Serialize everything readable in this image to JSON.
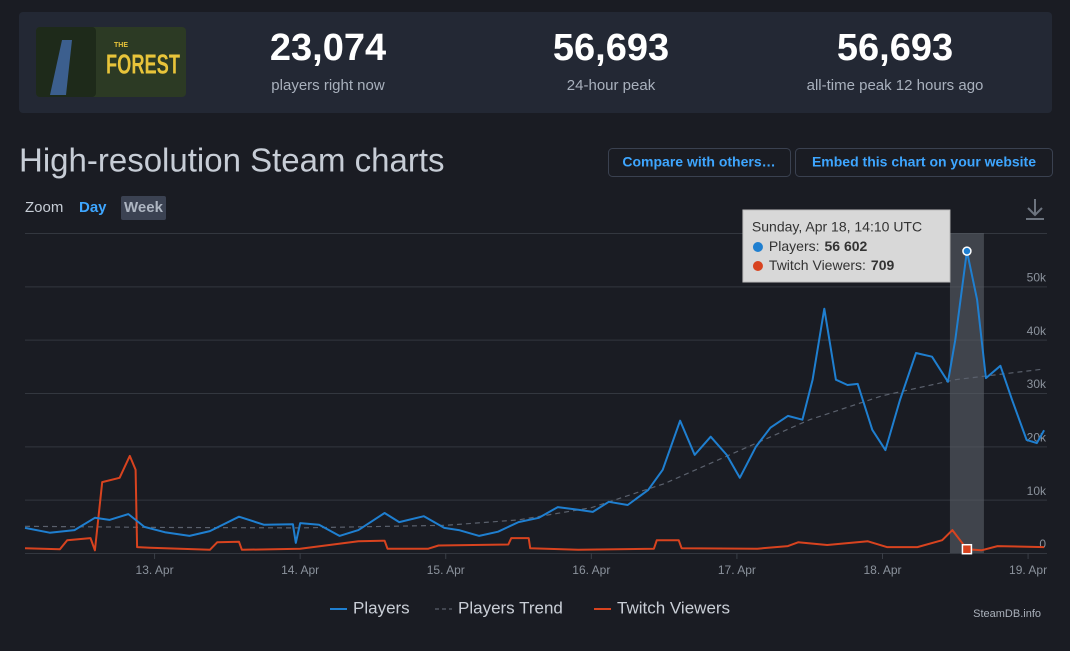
{
  "header": {
    "logo": {
      "small": "THE",
      "big": "FOREST"
    },
    "stats": [
      {
        "value": "23,074",
        "label": "players right now"
      },
      {
        "value": "56,693",
        "label": "24-hour peak"
      },
      {
        "value": "56,693",
        "label": "all-time peak 12 hours ago"
      }
    ]
  },
  "title": "High-resolution Steam charts",
  "buttons": [
    "Compare with others…",
    "Embed this chart on your website"
  ],
  "zoom": {
    "label": "Zoom",
    "options": [
      "Day",
      "Week"
    ]
  },
  "credit": "SteamDB.info",
  "chart_data": {
    "type": "line",
    "xlim": [
      12.11,
      19.13
    ],
    "xticks": [
      {
        "value": 13,
        "label": "13. Apr"
      },
      {
        "value": 14,
        "label": "14. Apr"
      },
      {
        "value": 15,
        "label": "15. Apr"
      },
      {
        "value": 16,
        "label": "16. Apr"
      },
      {
        "value": 17,
        "label": "17. Apr"
      },
      {
        "value": 18,
        "label": "18. Apr"
      },
      {
        "value": 19,
        "label": "19. Apr"
      }
    ],
    "ylim": [
      0,
      60000
    ],
    "yticks": [
      0,
      {
        "value": 10000,
        "label": "10k"
      },
      {
        "value": 20000,
        "label": "20k"
      },
      {
        "value": 30000,
        "label": "30k"
      },
      {
        "value": 40000,
        "label": "40k"
      },
      {
        "value": 50000,
        "label": "50k"
      }
    ],
    "grid": true,
    "series": [
      {
        "name": "Players",
        "color": "#1f7fd0",
        "dashed": false,
        "x": [
          12.11,
          12.28,
          12.45,
          12.59,
          12.69,
          12.82,
          12.93,
          13.07,
          13.24,
          13.38,
          13.58,
          13.75,
          13.95,
          13.97,
          14.0,
          14.13,
          14.27,
          14.4,
          14.58,
          14.68,
          14.85,
          14.99,
          15.09,
          15.23,
          15.36,
          15.5,
          15.64,
          15.77,
          15.91,
          16.01,
          16.12,
          16.25,
          16.39,
          16.49,
          16.61,
          16.71,
          16.82,
          16.93,
          17.02,
          17.13,
          17.23,
          17.35,
          17.45,
          17.52,
          17.6,
          17.68,
          17.76,
          17.83,
          17.93,
          18.02,
          18.12,
          18.23,
          18.34,
          18.45,
          18.5,
          18.58,
          18.65,
          18.71,
          18.81,
          18.89,
          18.99,
          19.06,
          19.11
        ],
        "values": [
          4700,
          3800,
          4300,
          6600,
          6200,
          7300,
          4900,
          3900,
          3200,
          4100,
          6800,
          5300,
          5400,
          1900,
          5600,
          5300,
          3200,
          4300,
          7500,
          5800,
          6900,
          4700,
          4300,
          3200,
          4000,
          5800,
          6600,
          8600,
          8100,
          7700,
          9600,
          9000,
          11800,
          15600,
          24800,
          18400,
          21800,
          18400,
          14100,
          19900,
          23500,
          25700,
          25000,
          32500,
          45800,
          32500,
          31500,
          31700,
          23100,
          19300,
          28700,
          37500,
          36800,
          32100,
          40000,
          56602,
          47500,
          32800,
          35100,
          28700,
          21200,
          20600,
          23000
        ]
      },
      {
        "name": "Players Trend",
        "color": "#5a606c",
        "dashed": true,
        "x": [
          12.11,
          13,
          14,
          15,
          15.5,
          16,
          16.5,
          17,
          17.5,
          18,
          18.5,
          19.11
        ],
        "values": [
          5000,
          4800,
          4700,
          5200,
          6200,
          8500,
          13000,
          19000,
          25000,
          29500,
          32500,
          34500
        ]
      },
      {
        "name": "Twitch Viewers",
        "color": "#d8431f",
        "dashed": false,
        "x": [
          12.11,
          12.35,
          12.4,
          12.56,
          12.59,
          12.64,
          12.76,
          12.83,
          12.87,
          12.88,
          12.97,
          13.38,
          13.43,
          13.58,
          13.6,
          14.0,
          14.4,
          14.58,
          14.6,
          14.88,
          14.95,
          15.43,
          15.45,
          15.57,
          15.58,
          15.91,
          16.43,
          16.45,
          16.6,
          16.62,
          17.14,
          17.35,
          17.42,
          17.62,
          17.9,
          18.03,
          18.24,
          18.41,
          18.48,
          18.58,
          18.68,
          18.79,
          19.11
        ],
        "values": [
          900,
          700,
          2400,
          2800,
          500,
          13300,
          14100,
          18200,
          15600,
          1100,
          1000,
          600,
          2000,
          2100,
          600,
          800,
          2200,
          2300,
          800,
          800,
          1400,
          1600,
          2800,
          2800,
          900,
          600,
          800,
          2400,
          2400,
          900,
          800,
          1300,
          2000,
          1500,
          2200,
          1100,
          1100,
          2400,
          4300,
          709,
          500,
          1300,
          1100
        ]
      }
    ],
    "tooltip": {
      "x": 18.58,
      "title": "Sunday, Apr 18, 14:10 UTC",
      "rows": [
        {
          "series": 0,
          "index": 55,
          "name": "Players:",
          "value": 56602,
          "value_label": "56 602"
        },
        {
          "series": 2,
          "index": 39,
          "name": "Twitch Viewers:",
          "value": 709
        }
      ]
    }
  }
}
